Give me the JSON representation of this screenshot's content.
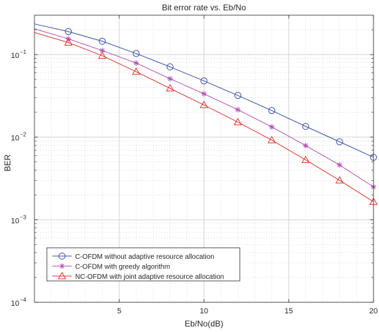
{
  "chart_data": {
    "type": "line",
    "title": "Bit error rate vs. Eb/No",
    "xlabel": "Eb/No(dB)",
    "ylabel": "BER",
    "xlim": [
      0,
      20
    ],
    "ylim": [
      0.0001,
      0.3
    ],
    "yscale": "log",
    "grid": true,
    "minor_grid": true,
    "legend_position": "bottom-left",
    "x_ticks": [
      5,
      10,
      15,
      20
    ],
    "y_ticks": [
      {
        "value": 0.1,
        "base": "10",
        "exp": "−1"
      },
      {
        "value": 0.01,
        "base": "10",
        "exp": "−2"
      },
      {
        "value": 0.001,
        "base": "10",
        "exp": "−3"
      },
      {
        "value": 0.0001,
        "base": "10",
        "exp": "−4"
      }
    ],
    "x": [
      0,
      2,
      4,
      6,
      8,
      10,
      12,
      14,
      16,
      18,
      20
    ],
    "series": [
      {
        "name": "C-OFDM without adaptive resource allocation",
        "color": "#3a4fa8",
        "marker": "circle",
        "values": [
          0.235,
          0.19,
          0.145,
          0.103,
          0.071,
          0.048,
          0.032,
          0.021,
          0.0135,
          0.0088,
          0.0057
        ]
      },
      {
        "name": "C-OFDM with greedy algorithm",
        "color": "#b04fb4",
        "marker": "asterisk",
        "values": [
          0.205,
          0.155,
          0.112,
          0.079,
          0.051,
          0.0335,
          0.0215,
          0.0133,
          0.0079,
          0.0046,
          0.0025
        ]
      },
      {
        "name": "NC-OFDM with joint adaptive resource allocation",
        "color": "#d8372f",
        "marker": "triangle",
        "values": [
          0.185,
          0.14,
          0.097,
          0.062,
          0.039,
          0.0245,
          0.0152,
          0.0092,
          0.0053,
          0.003,
          0.00165
        ]
      }
    ]
  }
}
